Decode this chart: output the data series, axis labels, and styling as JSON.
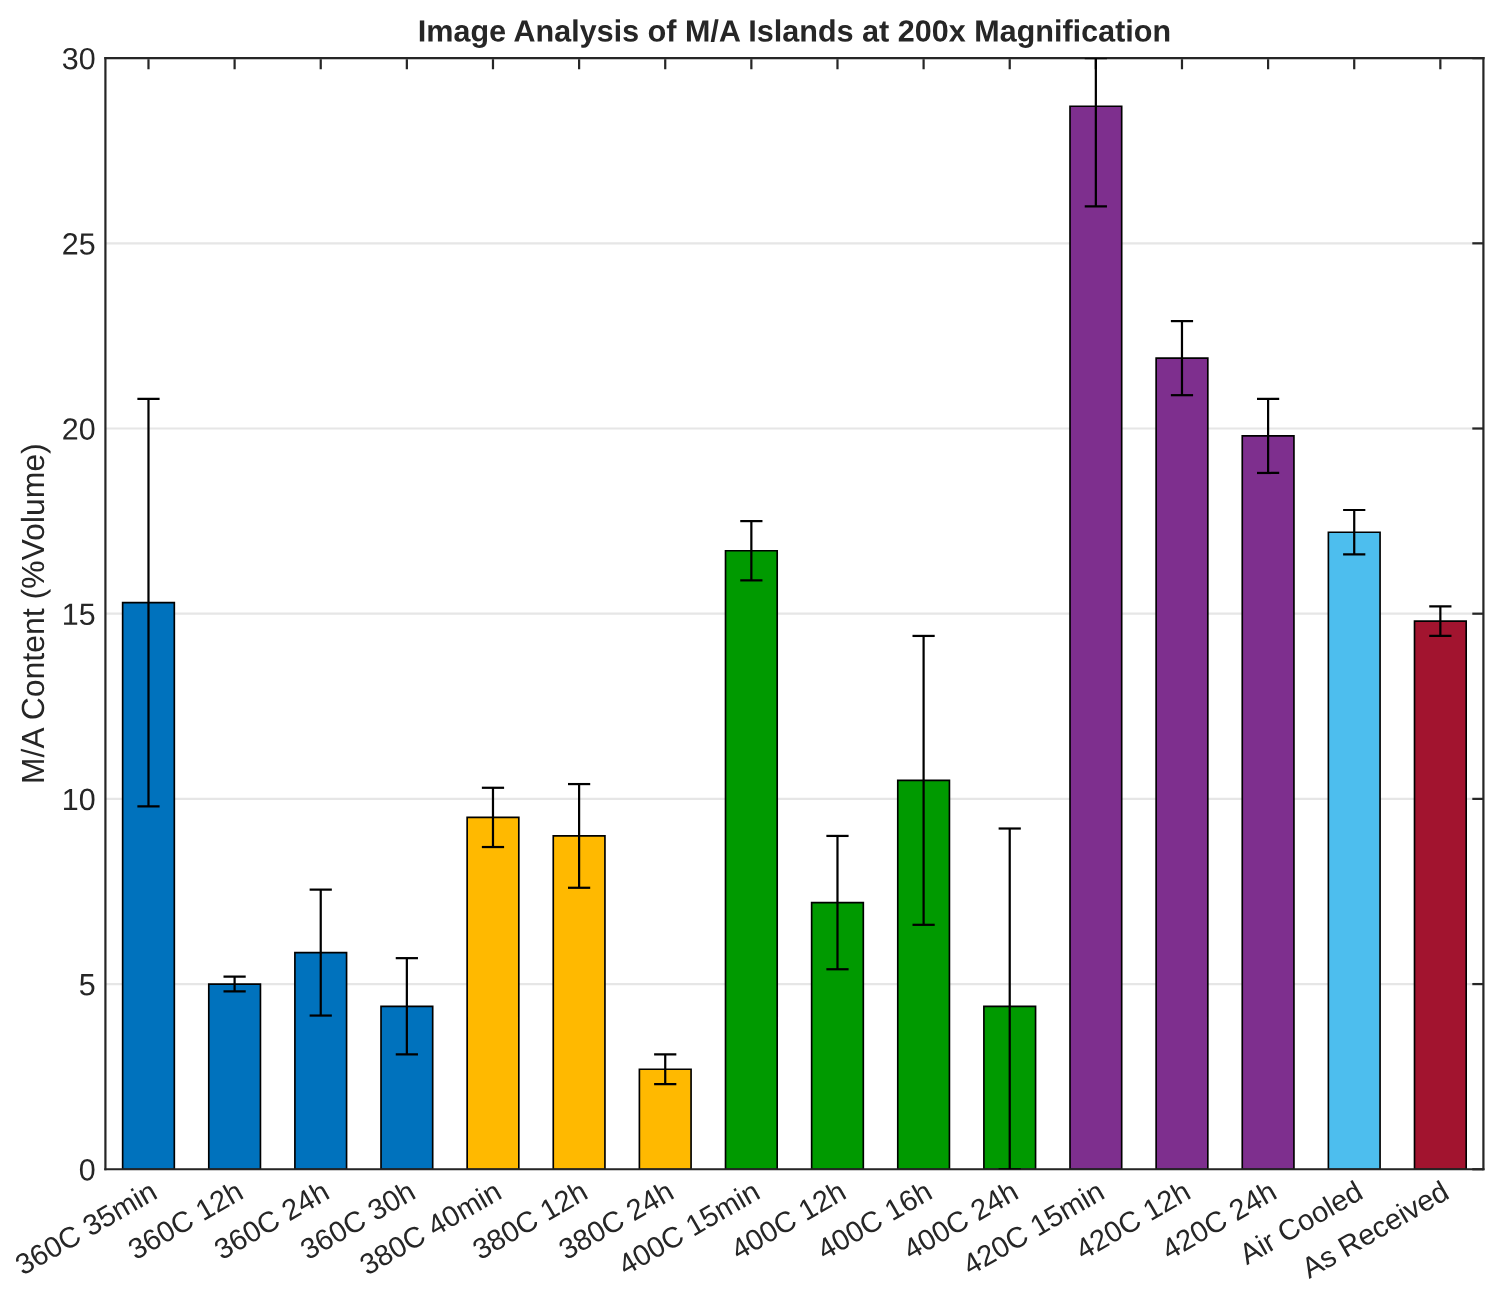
{
  "chart_data": {
    "type": "bar",
    "title": "Image Analysis of M/A Islands at 200x Magnification",
    "ylabel": "M/A Content (%Volume)",
    "categories": [
      "360C 35min",
      "360C 12h",
      "360C 24h",
      "360C 30h",
      "380C 40min",
      "380C 12h",
      "380C 24h",
      "400C 15min",
      "400C 12h",
      "400C 16h",
      "400C 24h",
      "420C 15min",
      "420C 12h",
      "420C 24h",
      "Air Cooled",
      "As Received"
    ],
    "values": [
      15.3,
      5.0,
      5.85,
      4.4,
      9.5,
      9.0,
      2.7,
      16.7,
      7.2,
      10.5,
      4.4,
      28.7,
      21.9,
      19.8,
      17.2,
      14.8
    ],
    "errors": [
      5.5,
      0.2,
      1.7,
      1.3,
      0.8,
      1.4,
      0.4,
      0.8,
      1.8,
      3.9,
      [
        0,
        9.2
      ],
      [
        26.0,
        30
      ],
      1.0,
      1.0,
      0.6,
      0.4
    ],
    "colors": [
      "#0072bd",
      "#0072bd",
      "#0072bd",
      "#0072bd",
      "#ffb900",
      "#ffb900",
      "#ffb900",
      "#009a00",
      "#009a00",
      "#009a00",
      "#009a00",
      "#7e2f8e",
      "#7e2f8e",
      "#7e2f8e",
      "#4dbeee",
      "#a2142f"
    ],
    "ylim": [
      0,
      30
    ],
    "yticks": [
      0,
      5,
      10,
      15,
      20,
      25,
      30
    ],
    "grid": "y"
  }
}
